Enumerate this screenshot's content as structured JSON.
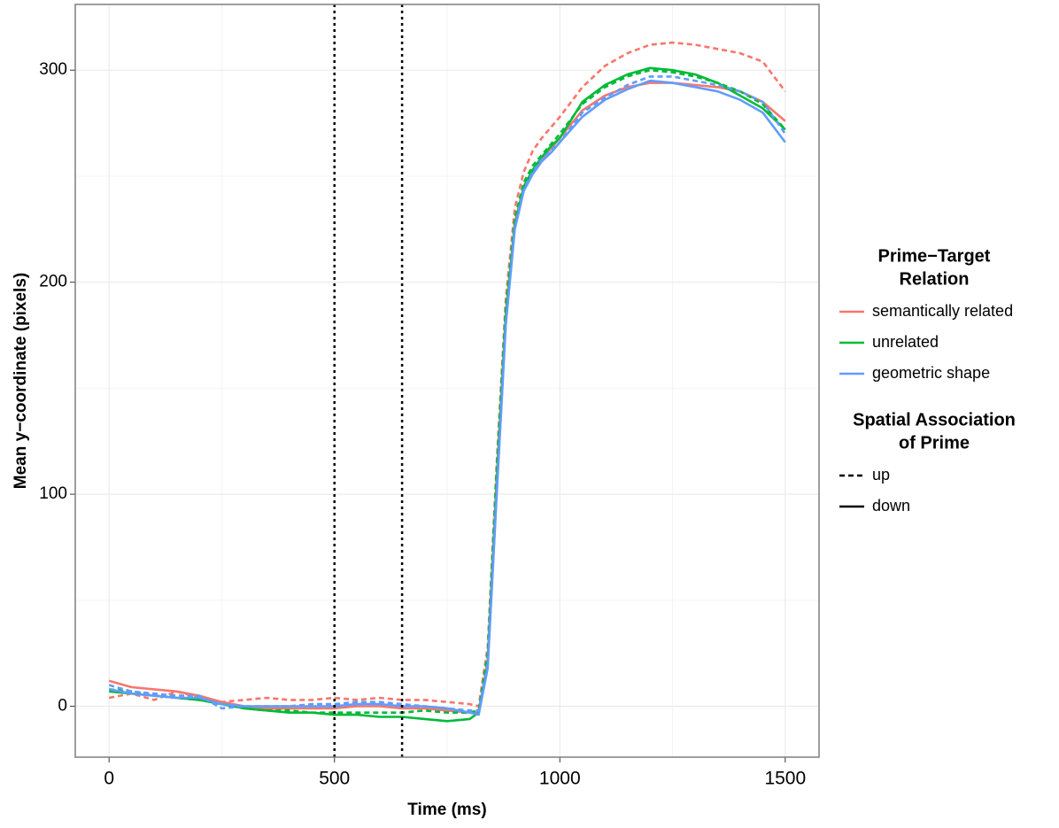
{
  "chart_data": {
    "type": "line",
    "x_label": "Time (ms)",
    "y_label": "Mean y−coordinate (pixels)",
    "xlim": [
      -75,
      1575
    ],
    "ylim": [
      -24,
      331
    ],
    "xticks": [
      0,
      500,
      1000,
      1500
    ],
    "yticks": [
      0,
      100,
      200,
      300
    ],
    "xminor": [
      250,
      750,
      1250
    ],
    "yminor": [
      50,
      150,
      250
    ],
    "grid": true,
    "vlines": [
      500,
      650
    ],
    "x": [
      0,
      50,
      100,
      150,
      200,
      250,
      300,
      350,
      400,
      450,
      500,
      550,
      600,
      650,
      700,
      750,
      800,
      820,
      840,
      860,
      880,
      900,
      920,
      940,
      960,
      980,
      1000,
      1050,
      1100,
      1150,
      1200,
      1250,
      1300,
      1350,
      1400,
      1450,
      1500
    ],
    "series": [
      {
        "color": "#f8766d",
        "linetype": "dashed",
        "values": [
          4,
          6,
          3,
          7,
          4,
          2,
          3,
          4,
          3,
          3,
          4,
          3,
          4,
          3,
          3,
          2,
          1,
          0,
          28,
          115,
          192,
          235,
          252,
          262,
          268,
          273,
          278,
          292,
          302,
          308,
          312,
          313,
          312,
          310,
          308,
          304,
          290
        ]
      },
      {
        "color": "#f8766d",
        "linetype": "solid",
        "values": [
          12,
          9,
          8,
          7,
          5,
          2,
          0,
          -1,
          -1,
          -1,
          -1,
          0,
          0,
          -1,
          -1,
          -2,
          -3,
          -3,
          22,
          108,
          185,
          228,
          245,
          253,
          258,
          263,
          268,
          281,
          288,
          292,
          294,
          294,
          293,
          292,
          290,
          285,
          276
        ]
      },
      {
        "color": "#00ba38",
        "linetype": "dashed",
        "values": [
          8,
          7,
          5,
          4,
          3,
          1,
          -1,
          -2,
          -2,
          -3,
          -3,
          -3,
          -3,
          -3,
          -2,
          -3,
          -3,
          -2,
          25,
          112,
          188,
          230,
          247,
          255,
          260,
          265,
          270,
          284,
          292,
          297,
          300,
          299,
          297,
          294,
          290,
          284,
          272
        ]
      },
      {
        "color": "#00ba38",
        "linetype": "solid",
        "values": [
          7,
          6,
          5,
          4,
          3,
          1,
          -1,
          -2,
          -3,
          -3,
          -4,
          -4,
          -5,
          -5,
          -6,
          -7,
          -6,
          -3,
          20,
          105,
          183,
          227,
          245,
          253,
          259,
          264,
          268,
          285,
          293,
          298,
          301,
          300,
          298,
          294,
          288,
          282,
          272
        ]
      },
      {
        "color": "#619cff",
        "linetype": "dashed",
        "values": [
          10,
          7,
          6,
          5,
          5,
          -1,
          0,
          0,
          0,
          1,
          1,
          2,
          2,
          1,
          0,
          -1,
          -2,
          -2,
          20,
          102,
          180,
          226,
          244,
          252,
          258,
          262,
          266,
          280,
          287,
          293,
          297,
          297,
          295,
          293,
          290,
          285,
          270
        ]
      },
      {
        "color": "#619cff",
        "linetype": "solid",
        "values": [
          8,
          6,
          5,
          4,
          4,
          1,
          0,
          0,
          0,
          0,
          0,
          1,
          1,
          0,
          0,
          -1,
          -3,
          -4,
          18,
          100,
          180,
          225,
          243,
          251,
          257,
          261,
          266,
          278,
          286,
          291,
          295,
          294,
          292,
          290,
          286,
          280,
          266
        ]
      }
    ],
    "color_legend": {
      "title": [
        "Prime−Target",
        "Relation"
      ],
      "entries": [
        {
          "label": "semantically related",
          "color": "#f8766d"
        },
        {
          "label": "unrelated",
          "color": "#00ba38"
        },
        {
          "label": "geometric shape",
          "color": "#619cff"
        }
      ]
    },
    "linetype_legend": {
      "title": [
        "Spatial Association",
        "of Prime"
      ],
      "entries": [
        {
          "label": "up",
          "linetype": "dashed"
        },
        {
          "label": "down",
          "linetype": "solid"
        }
      ]
    }
  }
}
